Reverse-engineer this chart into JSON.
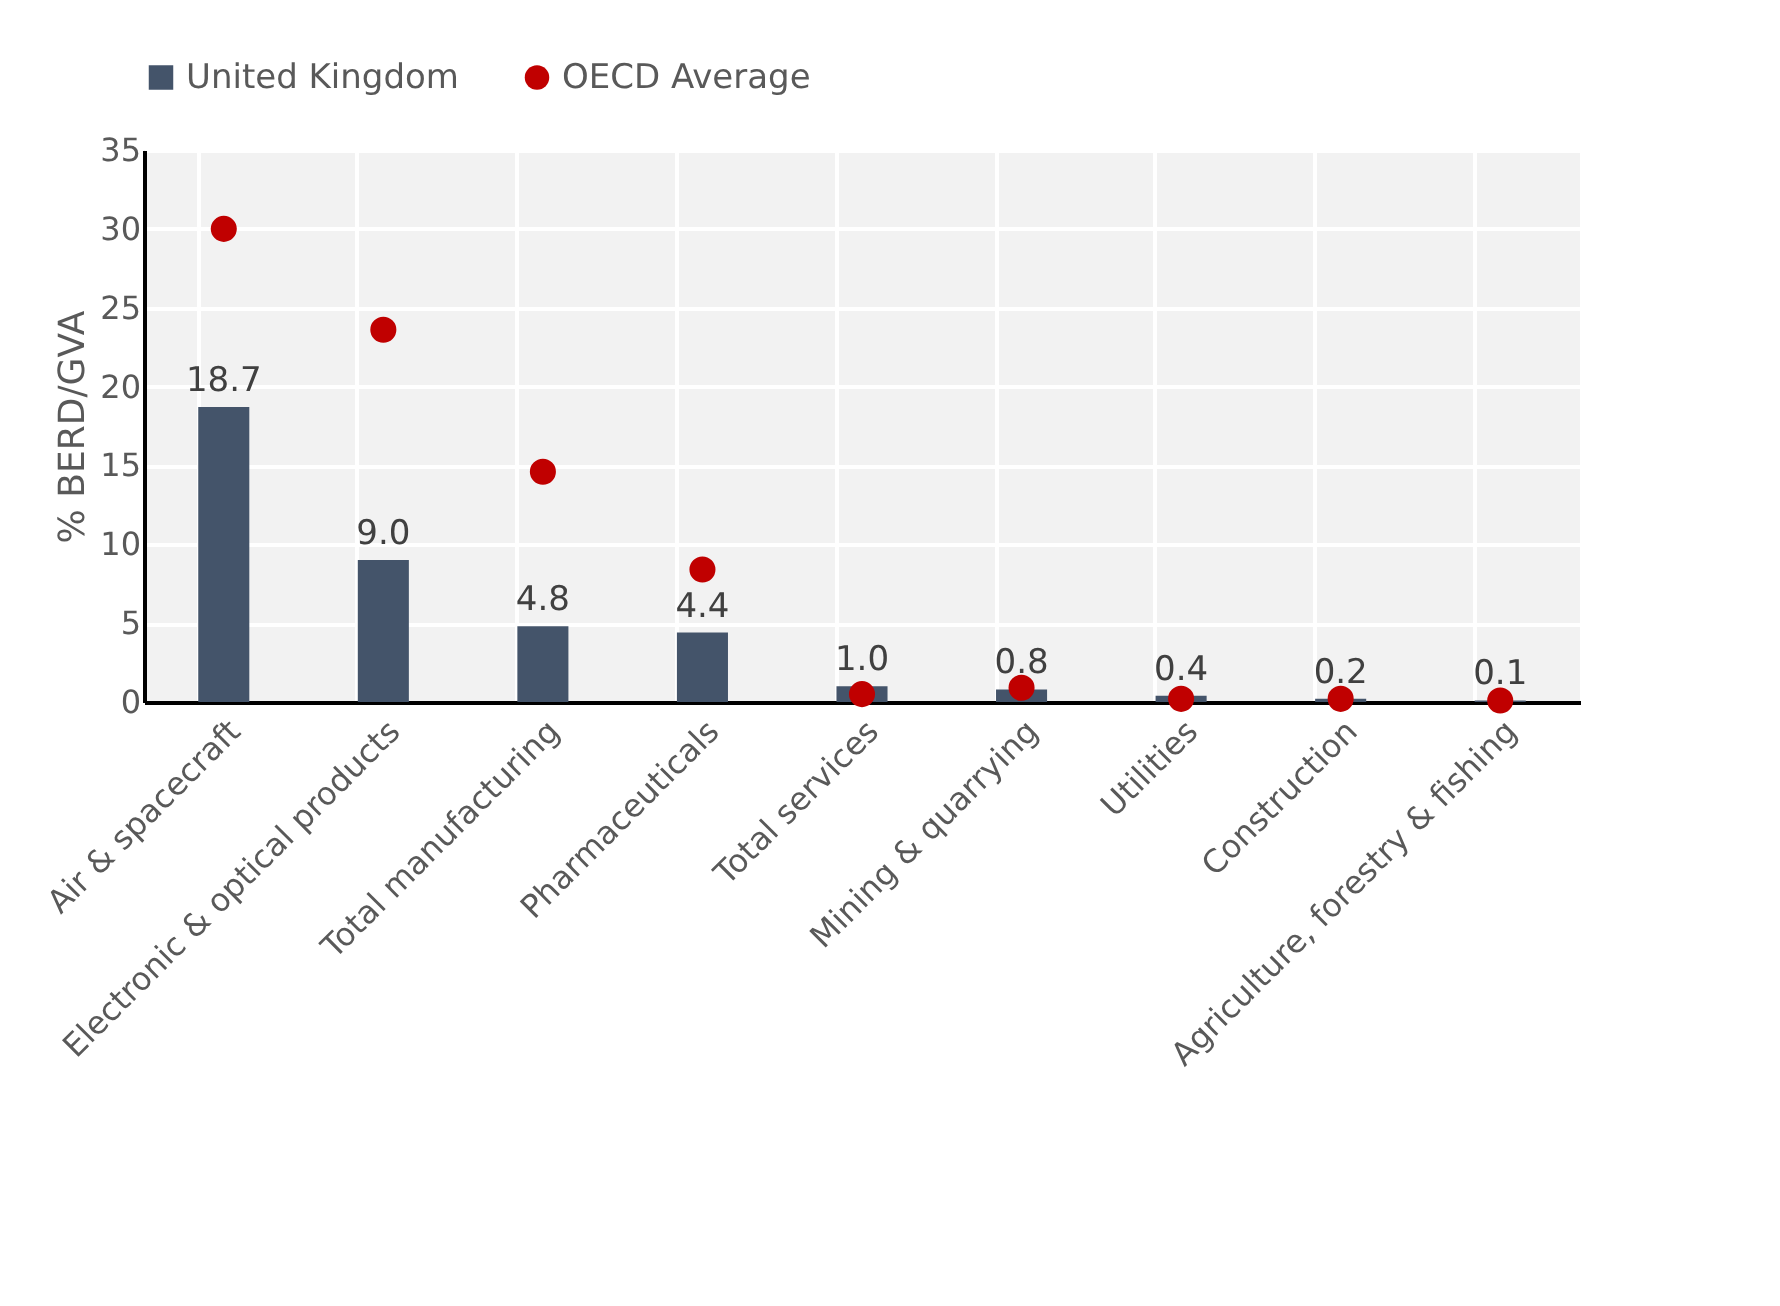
{
  "chart_data": {
    "type": "bar",
    "ylabel": "% BERD/GVA",
    "categories": [
      "Air & spacecraft",
      "Electronic & optical products",
      "Total manufacturing",
      "Pharmaceuticals",
      "Total services",
      "Mining & quarrying",
      "Utilities",
      "Construction",
      "Agriculture, forestry & fishing"
    ],
    "series": [
      {
        "name": "United Kingdom",
        "color": "#44546a",
        "values": [
          18.7,
          9.0,
          4.8,
          4.4,
          1.0,
          0.8,
          0.4,
          0.2,
          0.1
        ],
        "value_labels": [
          "18.7",
          "9.0",
          "4.8",
          "4.4",
          "1.0",
          "0.8",
          "0.4",
          "0.2",
          "0.1"
        ]
      },
      {
        "name": "OECD Average",
        "type": "scatter",
        "color": "#c00000",
        "values": [
          30.0,
          23.6,
          14.6,
          8.4,
          0.5,
          0.9,
          0.2,
          0.2,
          0.1
        ]
      }
    ],
    "ylim": [
      0,
      35
    ],
    "yticks": [
      0,
      5,
      10,
      15,
      20,
      25,
      30,
      35
    ],
    "grid": true,
    "legend": "top",
    "marker": "circle"
  }
}
